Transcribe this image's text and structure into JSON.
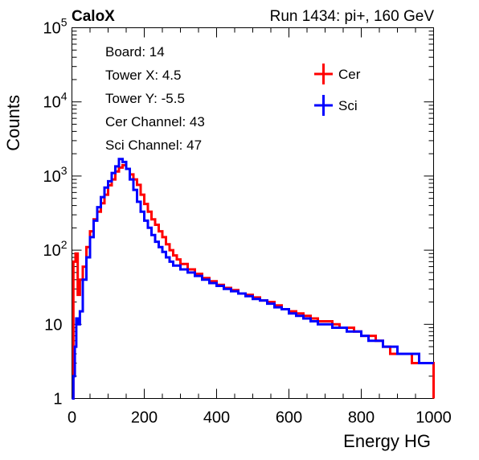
{
  "chart_data": {
    "type": "line",
    "title_left": "CaloX",
    "title_right": "Run 1434: pi+, 160 GeV",
    "xlabel": "Energy HG",
    "ylabel": "Counts",
    "xlim": [
      0,
      1000
    ],
    "ylim": [
      1,
      100000
    ],
    "yscale": "log",
    "x_ticks": [
      0,
      200,
      400,
      600,
      800,
      1000
    ],
    "y_tick_labels": [
      "1",
      "10",
      "10^2",
      "10^3",
      "10^4",
      "10^5"
    ],
    "info_box": [
      "Board: 14",
      "Tower X: 4.5",
      "Tower Y: -5.5",
      "Cer Channel: 43",
      "Sci Channel: 47"
    ],
    "legend_position": "top-right",
    "series": [
      {
        "name": "Cer",
        "color": "#ff0000",
        "points": [
          [
            0,
            1
          ],
          [
            4,
            70
          ],
          [
            10,
            90
          ],
          [
            16,
            25
          ],
          [
            22,
            40
          ],
          [
            30,
            60
          ],
          [
            40,
            110
          ],
          [
            50,
            180
          ],
          [
            60,
            260
          ],
          [
            70,
            330
          ],
          [
            80,
            430
          ],
          [
            90,
            560
          ],
          [
            100,
            750
          ],
          [
            110,
            900
          ],
          [
            120,
            1150
          ],
          [
            130,
            1300
          ],
          [
            140,
            1400
          ],
          [
            150,
            1250
          ],
          [
            160,
            1050
          ],
          [
            170,
            900
          ],
          [
            180,
            760
          ],
          [
            190,
            560
          ],
          [
            200,
            420
          ],
          [
            210,
            330
          ],
          [
            220,
            260
          ],
          [
            230,
            220
          ],
          [
            240,
            180
          ],
          [
            250,
            150
          ],
          [
            260,
            120
          ],
          [
            270,
            100
          ],
          [
            280,
            85
          ],
          [
            290,
            75
          ],
          [
            300,
            65
          ],
          [
            320,
            55
          ],
          [
            340,
            48
          ],
          [
            360,
            42
          ],
          [
            380,
            38
          ],
          [
            400,
            34
          ],
          [
            420,
            31
          ],
          [
            440,
            29
          ],
          [
            460,
            26
          ],
          [
            480,
            25
          ],
          [
            500,
            23
          ],
          [
            520,
            21
          ],
          [
            540,
            20
          ],
          [
            560,
            18
          ],
          [
            580,
            16
          ],
          [
            600,
            15
          ],
          [
            620,
            14
          ],
          [
            640,
            13
          ],
          [
            660,
            12
          ],
          [
            680,
            11
          ],
          [
            700,
            11
          ],
          [
            720,
            10
          ],
          [
            740,
            9
          ],
          [
            760,
            9
          ],
          [
            780,
            8
          ],
          [
            800,
            7
          ],
          [
            820,
            7
          ],
          [
            840,
            6
          ],
          [
            860,
            5
          ],
          [
            880,
            4
          ],
          [
            900,
            4
          ],
          [
            920,
            4
          ],
          [
            940,
            3
          ],
          [
            960,
            3
          ],
          [
            980,
            3
          ],
          [
            1000,
            1
          ]
        ]
      },
      {
        "name": "Sci",
        "color": "#0000ff",
        "points": [
          [
            0,
            1
          ],
          [
            4,
            2
          ],
          [
            8,
            5
          ],
          [
            12,
            12
          ],
          [
            16,
            10
          ],
          [
            22,
            15
          ],
          [
            30,
            40
          ],
          [
            40,
            80
          ],
          [
            50,
            150
          ],
          [
            60,
            250
          ],
          [
            70,
            380
          ],
          [
            80,
            520
          ],
          [
            90,
            700
          ],
          [
            100,
            850
          ],
          [
            110,
            1100
          ],
          [
            120,
            1350
          ],
          [
            130,
            1700
          ],
          [
            140,
            1550
          ],
          [
            150,
            1250
          ],
          [
            160,
            900
          ],
          [
            170,
            650
          ],
          [
            180,
            450
          ],
          [
            190,
            330
          ],
          [
            200,
            250
          ],
          [
            210,
            200
          ],
          [
            220,
            160
          ],
          [
            230,
            130
          ],
          [
            240,
            110
          ],
          [
            250,
            95
          ],
          [
            260,
            80
          ],
          [
            270,
            70
          ],
          [
            280,
            62
          ],
          [
            300,
            55
          ],
          [
            320,
            50
          ],
          [
            340,
            45
          ],
          [
            360,
            40
          ],
          [
            380,
            36
          ],
          [
            400,
            33
          ],
          [
            420,
            30
          ],
          [
            440,
            28
          ],
          [
            460,
            26
          ],
          [
            480,
            24
          ],
          [
            500,
            22
          ],
          [
            520,
            21
          ],
          [
            540,
            19
          ],
          [
            560,
            17
          ],
          [
            580,
            16
          ],
          [
            600,
            14
          ],
          [
            620,
            13
          ],
          [
            640,
            12
          ],
          [
            660,
            11
          ],
          [
            680,
            10
          ],
          [
            700,
            10
          ],
          [
            720,
            9
          ],
          [
            740,
            9
          ],
          [
            760,
            8
          ],
          [
            780,
            8
          ],
          [
            800,
            7
          ],
          [
            820,
            6
          ],
          [
            840,
            6
          ],
          [
            860,
            5
          ],
          [
            880,
            5
          ],
          [
            900,
            4
          ],
          [
            920,
            4
          ],
          [
            940,
            4
          ],
          [
            960,
            3
          ],
          [
            980,
            3
          ],
          [
            1000,
            3
          ]
        ]
      }
    ]
  }
}
